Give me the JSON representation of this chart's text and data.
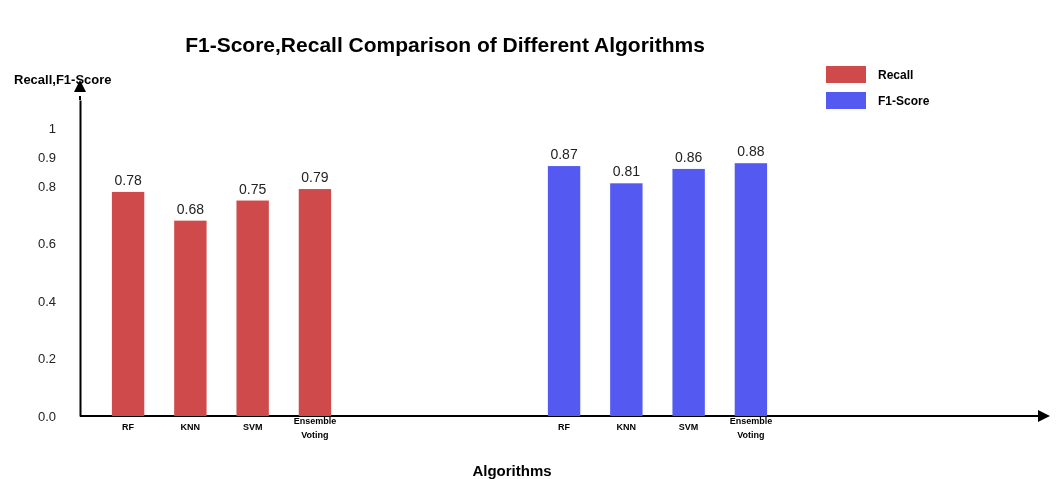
{
  "chart_data": {
    "type": "bar",
    "title": "F1-Score,Recall Comparison of Different Algorithms",
    "xlabel": "Algorithms",
    "ylabel": "Recall,F1-Score",
    "categories": [
      "RF",
      "KNN",
      "SVM",
      "Ensemble Voting",
      null,
      null,
      null,
      "RF",
      "KNN",
      "SVM",
      "Ensemble Voting"
    ],
    "series": [
      {
        "name": "Recall",
        "color": "#cf4a4a",
        "values": [
          0.78,
          0.68,
          0.75,
          0.79,
          null,
          null,
          null,
          null,
          null,
          null,
          null
        ]
      },
      {
        "name": "F1-Score",
        "color": "#5459f2",
        "values": [
          null,
          null,
          null,
          null,
          null,
          null,
          null,
          0.87,
          0.81,
          0.86,
          0.88
        ]
      }
    ],
    "ylim": [
      0,
      1.1
    ],
    "yticks": [
      {
        "value": 0,
        "label": "0.0"
      },
      0.2,
      0.4,
      0.6,
      0.8,
      0.9,
      1
    ],
    "data_labels": true,
    "legend": "top right",
    "grid": false
  }
}
